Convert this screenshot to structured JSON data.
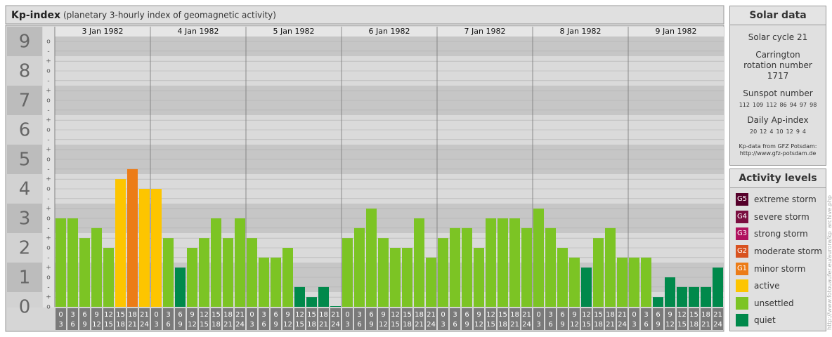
{
  "header": {
    "title": "Kp-index",
    "subtitle": "(planetary 3-hourly index of geomagnetic activity)"
  },
  "chart_data": {
    "type": "bar",
    "ylim": [
      0,
      9
    ],
    "yticks": [
      0,
      1,
      2,
      3,
      4,
      5,
      6,
      7,
      8,
      9
    ],
    "minor_ticks": [
      {
        "value": 0,
        "label": "o"
      },
      {
        "value": 0.33,
        "label": "+"
      },
      {
        "value": 0.67,
        "label": "-"
      },
      {
        "value": 1,
        "label": "o"
      },
      {
        "value": 1.33,
        "label": "+"
      },
      {
        "value": 1.67,
        "label": "-"
      },
      {
        "value": 2,
        "label": "o"
      },
      {
        "value": 2.33,
        "label": "+"
      },
      {
        "value": 2.67,
        "label": "-"
      },
      {
        "value": 3,
        "label": "o"
      },
      {
        "value": 3.33,
        "label": "+"
      },
      {
        "value": 3.67,
        "label": "-"
      },
      {
        "value": 4,
        "label": "o"
      },
      {
        "value": 4.33,
        "label": "+"
      },
      {
        "value": 4.67,
        "label": "-"
      },
      {
        "value": 5,
        "label": "o"
      },
      {
        "value": 5.33,
        "label": "+"
      },
      {
        "value": 5.67,
        "label": "-"
      },
      {
        "value": 6,
        "label": "o"
      },
      {
        "value": 6.33,
        "label": "+"
      },
      {
        "value": 6.67,
        "label": "-"
      },
      {
        "value": 7,
        "label": "o"
      },
      {
        "value": 7.33,
        "label": "+"
      },
      {
        "value": 7.67,
        "label": "-"
      },
      {
        "value": 8,
        "label": "o"
      },
      {
        "value": 8.33,
        "label": "+"
      },
      {
        "value": 8.67,
        "label": "-"
      },
      {
        "value": 9,
        "label": "o"
      }
    ],
    "grid": true,
    "time_slots": [
      {
        "from": 0,
        "to": 3
      },
      {
        "from": 3,
        "to": 6
      },
      {
        "from": 6,
        "to": 9
      },
      {
        "from": 9,
        "to": 12
      },
      {
        "from": 12,
        "to": 15
      },
      {
        "from": 15,
        "to": 18
      },
      {
        "from": 18,
        "to": 21
      },
      {
        "from": 21,
        "to": 24
      }
    ],
    "days": [
      {
        "label": "3 Jan 1982",
        "values": [
          3,
          3,
          2.33,
          2.67,
          2,
          4.33,
          4.67,
          4
        ],
        "colors": [
          "#7cc424",
          "#7cc424",
          "#7cc424",
          "#7cc424",
          "#7cc424",
          "#fdc500",
          "#ec7c17",
          "#fdc500"
        ]
      },
      {
        "label": "4 Jan 1982",
        "values": [
          4,
          2.33,
          1.33,
          2,
          2.33,
          3,
          2.33,
          3
        ],
        "colors": [
          "#fdc500",
          "#7cc424",
          "#00894b",
          "#7cc424",
          "#7cc424",
          "#7cc424",
          "#7cc424",
          "#7cc424"
        ]
      },
      {
        "label": "5 Jan 1982",
        "values": [
          2.33,
          1.67,
          1.67,
          2,
          0.67,
          0.33,
          0.67,
          0
        ],
        "colors": [
          "#7cc424",
          "#7cc424",
          "#7cc424",
          "#7cc424",
          "#00894b",
          "#00894b",
          "#00894b",
          "#00894b"
        ]
      },
      {
        "label": "6 Jan 1982",
        "values": [
          2.33,
          2.67,
          3.33,
          2.33,
          2,
          2,
          3,
          1.67
        ],
        "colors": [
          "#7cc424",
          "#7cc424",
          "#7cc424",
          "#7cc424",
          "#7cc424",
          "#7cc424",
          "#7cc424",
          "#7cc424"
        ]
      },
      {
        "label": "7 Jan 1982",
        "values": [
          2.33,
          2.67,
          2.67,
          2,
          3,
          3,
          3,
          2.67
        ],
        "colors": [
          "#7cc424",
          "#7cc424",
          "#7cc424",
          "#7cc424",
          "#7cc424",
          "#7cc424",
          "#7cc424",
          "#7cc424"
        ]
      },
      {
        "label": "8 Jan 1982",
        "values": [
          3.33,
          2.67,
          2,
          1.67,
          1.33,
          2.33,
          2.67,
          1.67
        ],
        "colors": [
          "#7cc424",
          "#7cc424",
          "#7cc424",
          "#7cc424",
          "#00894b",
          "#7cc424",
          "#7cc424",
          "#7cc424"
        ]
      },
      {
        "label": "9 Jan 1982",
        "values": [
          1.67,
          1.67,
          0.33,
          1,
          0.67,
          0.67,
          0.67,
          1.33
        ],
        "colors": [
          "#7cc424",
          "#7cc424",
          "#00894b",
          "#00894b",
          "#00894b",
          "#00894b",
          "#00894b",
          "#00894b"
        ]
      }
    ]
  },
  "solar_data": {
    "title": "Solar data",
    "cycle": "Solar cycle 21",
    "carrington": "Carrington rotation number 1717",
    "sunspot_title": "Sunspot number",
    "sunspot": [
      112,
      109,
      112,
      86,
      94,
      97,
      98
    ],
    "ap_title": "Daily Ap-index",
    "ap": [
      20,
      12,
      4,
      10,
      12,
      9,
      4
    ],
    "source": "Kp-data from GFZ Potsdam:",
    "source_url": "http://www.gfz-potsdam.de"
  },
  "activity_levels": {
    "title": "Activity levels",
    "items": [
      {
        "code": "G5",
        "label": "extreme storm",
        "color": "#55002a"
      },
      {
        "code": "G4",
        "label": "severe storm",
        "color": "#7a0e40"
      },
      {
        "code": "G3",
        "label": "strong storm",
        "color": "#b0125e"
      },
      {
        "code": "G2",
        "label": "moderate storm",
        "color": "#d8521f"
      },
      {
        "code": "G1",
        "label": "minor storm",
        "color": "#ec7c17"
      },
      {
        "label": "active",
        "color": "#fdc500"
      },
      {
        "label": "unsettled",
        "color": "#7cc424"
      },
      {
        "label": "quiet",
        "color": "#00894b"
      }
    ]
  },
  "side_url": "http://www.fotouaufer.eu/aurora/kp_archive.php"
}
